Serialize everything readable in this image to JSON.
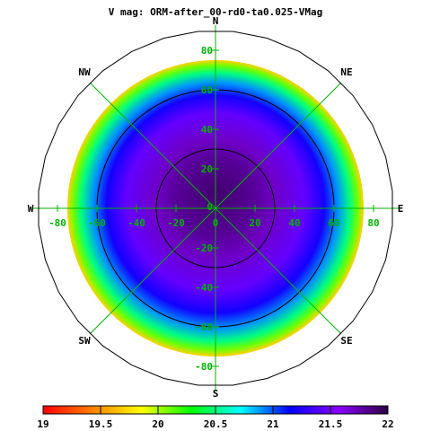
{
  "chart_data": {
    "type": "heatmap",
    "projection": "polar",
    "title": "V mag: ORM-after_00-rd0-ta0.025-VMag",
    "directions": {
      "N": "N",
      "NE": "NE",
      "E": "E",
      "SE": "SE",
      "S": "S",
      "SW": "SW",
      "W": "W",
      "NW": "NW"
    },
    "xlim": [
      -90,
      90
    ],
    "ylim": [
      -90,
      90
    ],
    "x_ticks": [
      "-80",
      "-60",
      "-40",
      "-20",
      "0",
      "20",
      "40",
      "60",
      "80"
    ],
    "y_ticks": [
      "80",
      "60",
      "40",
      "20",
      "0",
      "-20",
      "-40",
      "-60",
      "-80"
    ],
    "zenith_contours": [
      30,
      60
    ],
    "field_radius": 75,
    "field_samples": [
      {
        "zenith": 0,
        "value": 21.9
      },
      {
        "zenith": 20,
        "value": 21.8
      },
      {
        "zenith": 30,
        "value": 21.7
      },
      {
        "zenith": 45,
        "value": 21.45
      },
      {
        "zenith": 55,
        "value": 21.2
      },
      {
        "zenith": 62,
        "value": 20.9
      },
      {
        "zenith": 68,
        "value": 20.5
      },
      {
        "zenith": 72,
        "value": 20.1
      },
      {
        "zenith": 75,
        "value": 19.7
      }
    ],
    "north_offset": 8,
    "colorbar": {
      "min": 19,
      "max": 22,
      "tick_labels": [
        "19",
        "19.5",
        "20",
        "20.5",
        "21",
        "21.5",
        "22"
      ],
      "colors": [
        "#ff0000",
        "#ff7f00",
        "#ffff00",
        "#00ff00",
        "#00ffff",
        "#0000ff",
        "#8b00ff",
        "#2a0040"
      ]
    },
    "grid": true,
    "grid_color": "#00b400",
    "tick_color": "#00b400",
    "outline_color": "#000000"
  }
}
